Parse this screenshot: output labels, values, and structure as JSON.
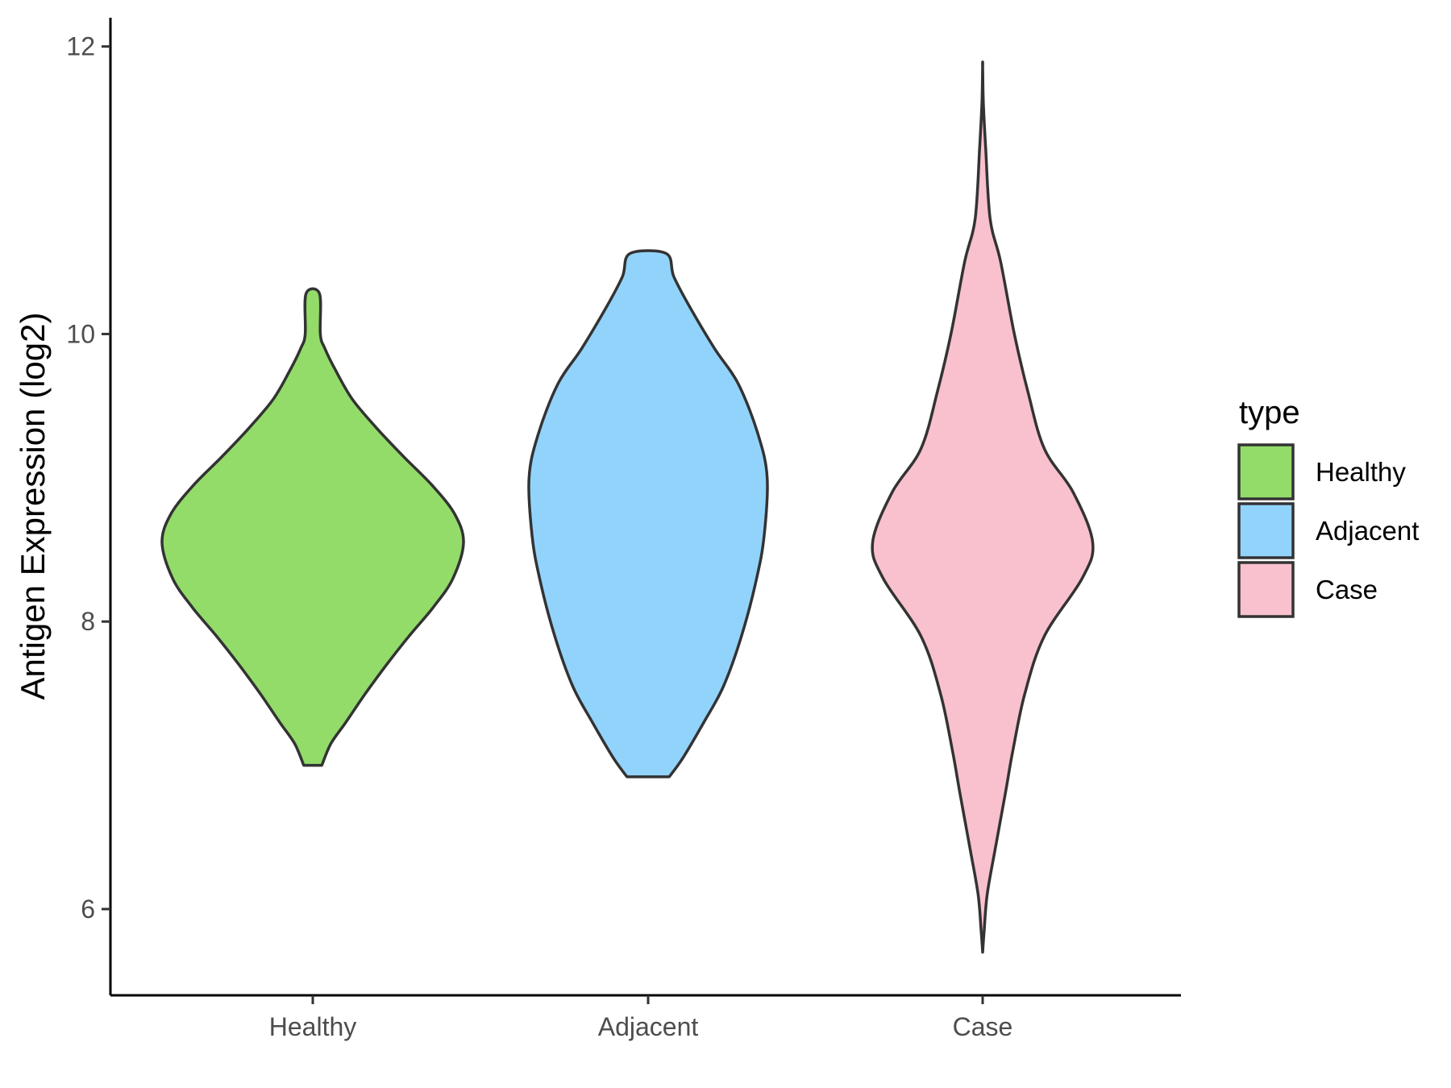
{
  "chart_data": {
    "type": "violin",
    "title": "",
    "xlabel": "",
    "ylabel": "Antigen Expression (log2)",
    "ylim": [
      5.4,
      12.2
    ],
    "yticks": [
      6,
      8,
      10,
      12
    ],
    "categories": [
      "Healthy",
      "Adjacent",
      "Case"
    ],
    "legend": {
      "title": "type",
      "position": "right",
      "entries": [
        "Healthy",
        "Adjacent",
        "Case"
      ]
    },
    "grid": false,
    "series": [
      {
        "category": "Healthy",
        "color": "#93DC6A",
        "min": 7.0,
        "max": 10.28,
        "density_profile": [
          [
            7.0,
            0.06
          ],
          [
            7.15,
            0.12
          ],
          [
            7.3,
            0.22
          ],
          [
            7.5,
            0.35
          ],
          [
            7.7,
            0.49
          ],
          [
            7.9,
            0.64
          ],
          [
            8.1,
            0.8
          ],
          [
            8.3,
            0.93
          ],
          [
            8.55,
            1.0
          ],
          [
            8.75,
            0.94
          ],
          [
            8.95,
            0.79
          ],
          [
            9.15,
            0.6
          ],
          [
            9.35,
            0.42
          ],
          [
            9.55,
            0.26
          ],
          [
            9.75,
            0.15
          ],
          [
            9.9,
            0.08
          ],
          [
            10.0,
            0.05
          ],
          [
            10.28,
            0.045
          ]
        ]
      },
      {
        "category": "Adjacent",
        "color": "#92D3FC",
        "min": 6.92,
        "max": 10.56,
        "density_profile": [
          [
            6.92,
            0.14
          ],
          [
            7.05,
            0.23
          ],
          [
            7.3,
            0.37
          ],
          [
            7.55,
            0.5
          ],
          [
            7.9,
            0.62
          ],
          [
            8.3,
            0.72
          ],
          [
            8.6,
            0.77
          ],
          [
            9.0,
            0.79
          ],
          [
            9.3,
            0.73
          ],
          [
            9.65,
            0.6
          ],
          [
            9.9,
            0.44
          ],
          [
            10.2,
            0.27
          ],
          [
            10.4,
            0.17
          ],
          [
            10.56,
            0.12
          ]
        ]
      },
      {
        "category": "Case",
        "color": "#F8C1CD",
        "min": 5.7,
        "max": 11.86,
        "density_profile": [
          [
            5.7,
            0.0
          ],
          [
            5.85,
            0.01
          ],
          [
            6.1,
            0.03
          ],
          [
            6.4,
            0.08
          ],
          [
            6.8,
            0.15
          ],
          [
            7.1,
            0.2
          ],
          [
            7.5,
            0.28
          ],
          [
            7.9,
            0.41
          ],
          [
            8.3,
            0.66
          ],
          [
            8.55,
            0.73
          ],
          [
            8.9,
            0.6
          ],
          [
            9.2,
            0.41
          ],
          [
            9.6,
            0.3
          ],
          [
            10.0,
            0.21
          ],
          [
            10.5,
            0.12
          ],
          [
            10.8,
            0.05
          ],
          [
            11.3,
            0.02
          ],
          [
            11.6,
            0.005
          ],
          [
            11.86,
            0.0
          ]
        ]
      }
    ]
  }
}
